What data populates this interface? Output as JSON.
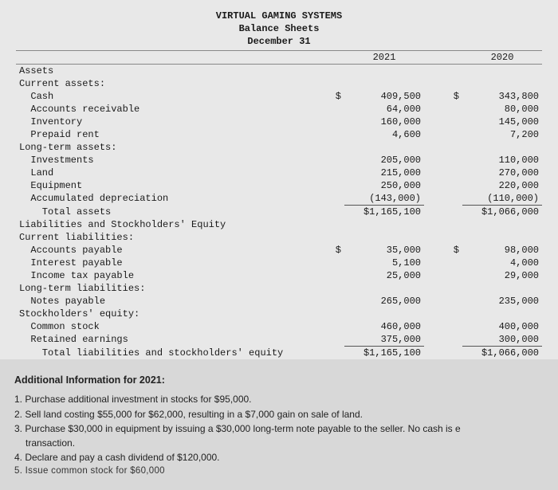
{
  "header": {
    "company": "VIRTUAL GAMING SYSTEMS",
    "statement": "Balance Sheets",
    "date_line": "December 31"
  },
  "columns": {
    "year1": "2021",
    "year2": "2020"
  },
  "rows": [
    {
      "label": "Assets",
      "class": "lbl"
    },
    {
      "label": "Current assets:",
      "class": "lbl"
    },
    {
      "label": "  Cash",
      "d1": "$",
      "v1": "409,500",
      "d2": "$",
      "v2": "343,800"
    },
    {
      "label": "  Accounts receivable",
      "v1": "64,000",
      "v2": "80,000"
    },
    {
      "label": "  Inventory",
      "v1": "160,000",
      "v2": "145,000"
    },
    {
      "label": "  Prepaid rent",
      "v1": "4,600",
      "v2": "7,200"
    },
    {
      "label": "Long-term assets:"
    },
    {
      "label": "  Investments",
      "v1": "205,000",
      "v2": "110,000"
    },
    {
      "label": "  Land",
      "v1": "215,000",
      "v2": "270,000"
    },
    {
      "label": "  Equipment",
      "v1": "250,000",
      "v2": "220,000"
    },
    {
      "label": "  Accumulated depreciation",
      "v1": "(143,000)",
      "v2": "(110,000)",
      "ul": true
    },
    {
      "label": "    Total assets",
      "v1": "$1,165,100",
      "v2": "$1,066,000"
    },
    {
      "label": "Liabilities and Stockholders' Equity"
    },
    {
      "label": "Current liabilities:"
    },
    {
      "label": "  Accounts payable",
      "d1": "$",
      "v1": "35,000",
      "d2": "$",
      "v2": "98,000"
    },
    {
      "label": "  Interest payable",
      "v1": "5,100",
      "v2": "4,000"
    },
    {
      "label": "  Income tax payable",
      "v1": "25,000",
      "v2": "29,000"
    },
    {
      "label": "Long-term liabilities:"
    },
    {
      "label": "  Notes payable",
      "v1": "265,000",
      "v2": "235,000"
    },
    {
      "label": "Stockholders' equity:"
    },
    {
      "label": "  Common stock",
      "v1": "460,000",
      "v2": "400,000"
    },
    {
      "label": "  Retained earnings",
      "v1": "375,000",
      "v2": "300,000",
      "ul": true
    },
    {
      "label": "    Total liabilities and stockholders' equity",
      "v1": "$1,165,100",
      "v2": "$1,066,000"
    }
  ],
  "additional": {
    "heading": "Additional Information for 2021:",
    "items": [
      "1. Purchase additional investment in stocks for $95,000.",
      "2. Sell land costing $55,000 for $62,000, resulting in a $7,000 gain on sale of land.",
      "3. Purchase $30,000 in equipment by issuing  a $30,000 long-term note payable to the seller. No cash is e",
      "    transaction.",
      "4. Declare and pay a cash dividend of $120,000."
    ],
    "cutoff": "5. Issue common stock for $60,000"
  },
  "colors": {
    "page_bg": "#d8d8d8",
    "sheet_bg": "#e8e8e8",
    "rule": "#888",
    "underline": "#555",
    "text": "#1a1a1a"
  }
}
